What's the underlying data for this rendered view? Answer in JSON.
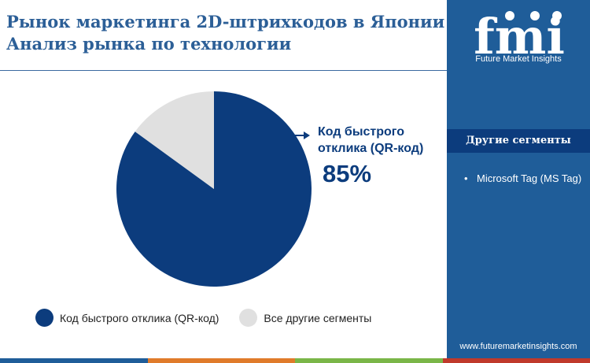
{
  "header": {
    "title_line1": "Рынок маркетинга 2D-штрихкодов в Японии",
    "title_line2": "Анализ рынка по технологии"
  },
  "chart_data": {
    "type": "pie",
    "title": "Рынок маркетинга 2D-штрихкодов в Японии Анализ рынка по технологии",
    "slices": [
      {
        "label": "Код быстрого отклика (QR-код)",
        "value": 85,
        "color": "#0c3c7d"
      },
      {
        "label": "Все другие сегменты",
        "value": 15,
        "color": "#e0e0e0"
      }
    ],
    "legend_position": "bottom",
    "callout": {
      "label": "Код быстрого отклика (QR-код)",
      "value": "85%"
    }
  },
  "legend": {
    "items": [
      {
        "label": "Код быстрого отклика (QR-код)",
        "color": "#0c3c7d"
      },
      {
        "label": "Все другие сегменты",
        "color": "#e0e0e0"
      }
    ]
  },
  "sidebar": {
    "logo_text": "fmi",
    "logo_subtitle": "Future Market Insights",
    "segments_title": "Другие сегменты",
    "segments": [
      "Microsoft Tag (MS Tag)"
    ],
    "url": "www.futuremarketinsights.com"
  },
  "colors": {
    "accent": "#1f5d99",
    "dark": "#0c3c7d",
    "bottom_bar": [
      "#1f5d99",
      "#e07b2a",
      "#7ab648",
      "#c0392b"
    ]
  }
}
